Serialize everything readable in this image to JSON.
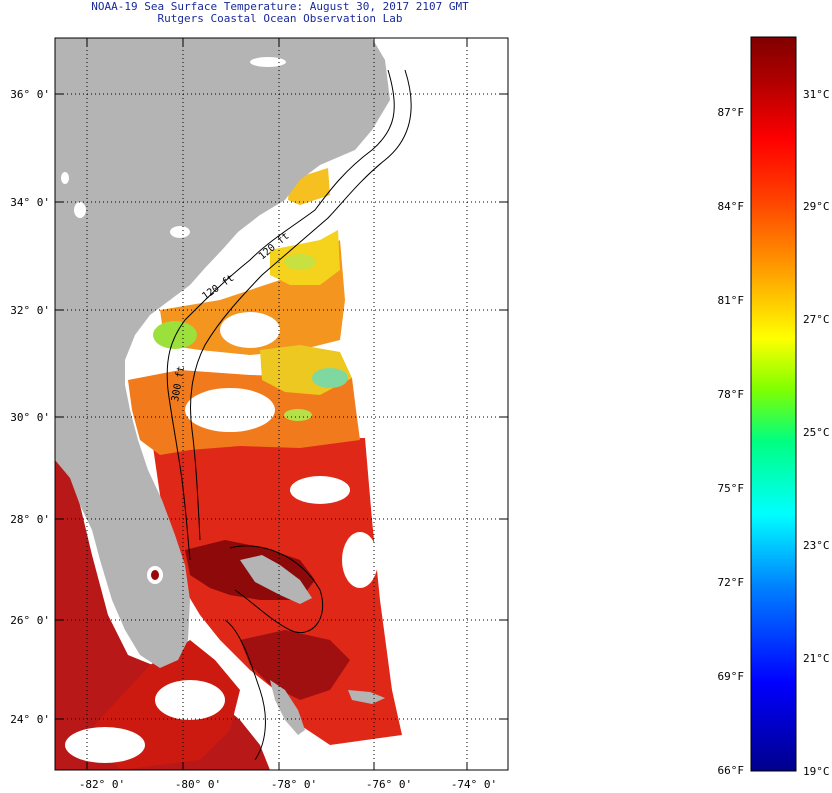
{
  "header": {
    "title": "NOAA-19 Sea Surface Temperature:  August 30, 2017 2107 GMT",
    "subtitle": "Rutgers Coastal Ocean Observation Lab"
  },
  "map": {
    "lat_labels": [
      "36° 0'",
      "34° 0'",
      "32° 0'",
      "30° 0'",
      "28° 0'",
      "26° 0'",
      "24° 0'"
    ],
    "lon_labels": [
      "-82° 0'",
      "-80° 0'",
      "-78° 0'",
      "-76° 0'",
      "-74° 0'"
    ],
    "contour_labels": [
      "120 ft",
      "120 ft",
      "300 ft"
    ],
    "land_color": "#b4b4b4",
    "grid": "dotted"
  },
  "colorbar": {
    "fahrenheit_labels": [
      "87°F",
      "84°F",
      "81°F",
      "78°F",
      "75°F",
      "72°F",
      "69°F",
      "66°F"
    ],
    "celsius_labels": [
      "31°C",
      "29°C",
      "27°C",
      "25°C",
      "23°C",
      "21°C",
      "19°C"
    ],
    "colors": [
      "#00008b",
      "#0000ff",
      "#0080ff",
      "#00ffff",
      "#00ff80",
      "#80ff00",
      "#ffff00",
      "#ffa000",
      "#ff4000",
      "#ff0000",
      "#b00000",
      "#800000"
    ]
  }
}
